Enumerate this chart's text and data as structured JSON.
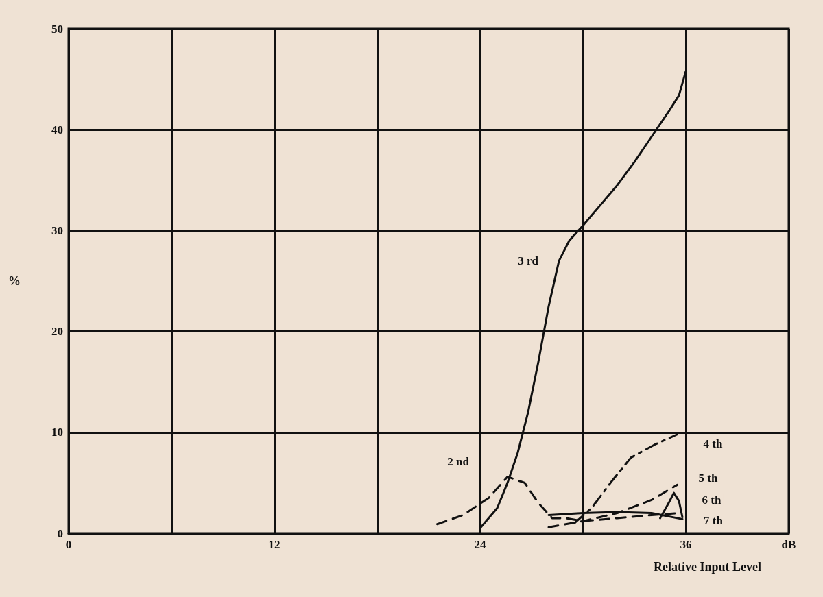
{
  "chart_data": {
    "type": "line",
    "xlabel": "Relative Input Level",
    "ylabel": "%",
    "xlim": [
      0,
      42
    ],
    "xticks": [
      0,
      {
        "value": 6,
        "label": null
      },
      12,
      {
        "value": 18,
        "label": null
      },
      24,
      {
        "value": 30,
        "label": null
      },
      36,
      {
        "value": 42,
        "label": "dB"
      }
    ],
    "ylim": [
      0,
      50
    ],
    "yticks": [
      0,
      10,
      20,
      30,
      40,
      50
    ],
    "grid": true,
    "legend": false,
    "marker": "none",
    "series": [
      {
        "name": "3 rd",
        "color": "#111111",
        "line_style": "solid",
        "x": [
          24,
          25,
          25.6,
          26.2,
          26.8,
          27.4,
          28,
          28.6,
          29.2,
          30,
          31,
          32,
          33,
          34,
          35,
          35.6,
          36
        ],
        "values": [
          0.5,
          2.5,
          5,
          8,
          12,
          17,
          22.5,
          27,
          29,
          30.5,
          32.5,
          34.5,
          36.8,
          39.3,
          41.8,
          43.4,
          45.8
        ]
      },
      {
        "name": "2 nd",
        "color": "#111111",
        "line_style": "dashed",
        "x": [
          21.5,
          23,
          24.5,
          25.6,
          26.6,
          27.4,
          28.2,
          29,
          30,
          32,
          34,
          35.6
        ],
        "values": [
          0.9,
          1.8,
          3.5,
          5.6,
          5,
          3,
          1.5,
          1.5,
          1.2,
          1.5,
          1.8,
          2
        ]
      },
      {
        "name": "4 th",
        "color": "#111111",
        "line_style": "dashed",
        "x": [
          29.5,
          30.5,
          31.7,
          32.8,
          34.2,
          35.5
        ],
        "values": [
          1,
          2.5,
          5.2,
          7.5,
          8.8,
          9.8
        ]
      },
      {
        "name": "5 th",
        "color": "#111111",
        "line_style": "dashed",
        "x": [
          28,
          30,
          32,
          34,
          35.5
        ],
        "values": [
          0.6,
          1.2,
          2,
          3.3,
          4.8
        ]
      },
      {
        "name": "6 th",
        "color": "#111111",
        "line_style": "solid",
        "x": [
          34.5,
          35,
          35.3,
          35.6,
          35.8
        ],
        "values": [
          1.5,
          3,
          4,
          3.2,
          1.6
        ]
      },
      {
        "name": "7 th",
        "color": "#111111",
        "line_style": "solid",
        "x": [
          28,
          30,
          32,
          34,
          35.8
        ],
        "values": [
          1.8,
          2,
          2.1,
          2,
          1.4
        ]
      }
    ]
  }
}
